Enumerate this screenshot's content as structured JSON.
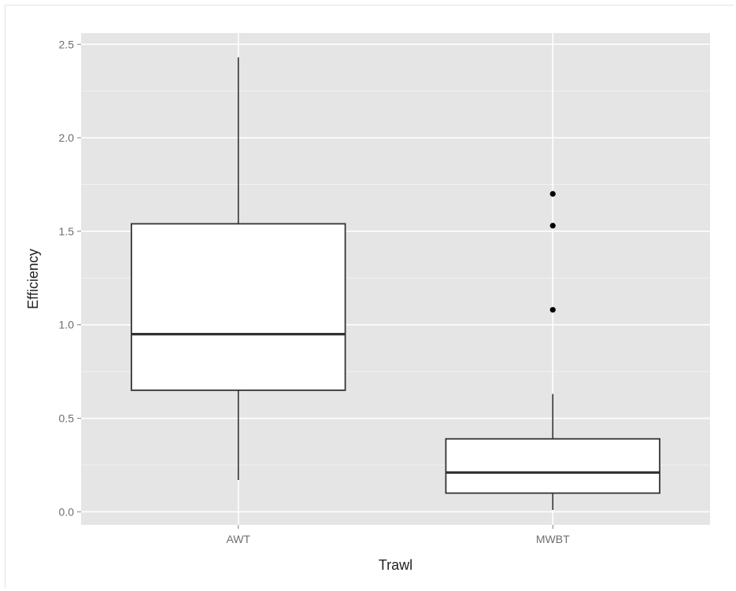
{
  "chart_data": {
    "type": "boxplot",
    "xlabel": "Trawl",
    "ylabel": "Efficiency",
    "categories": [
      "AWT",
      "MWBT"
    ],
    "ylim": [
      -0.07,
      2.56
    ],
    "y_ticks": [
      0.0,
      0.5,
      1.0,
      1.5,
      2.0,
      2.5
    ],
    "y_tick_labels": [
      "0.0",
      "0.5",
      "1.0",
      "1.5",
      "2.0",
      "2.5"
    ],
    "grid": true,
    "legend": "none",
    "boxes": [
      {
        "category": "AWT",
        "whisker_low": 0.17,
        "q1": 0.65,
        "median": 0.95,
        "q3": 1.54,
        "whisker_high": 2.43,
        "outliers": []
      },
      {
        "category": "MWBT",
        "whisker_low": 0.01,
        "q1": 0.1,
        "median": 0.21,
        "q3": 0.39,
        "whisker_high": 0.63,
        "outliers": [
          1.08,
          1.53,
          1.7
        ]
      }
    ],
    "colors": {
      "panel": "#e5e5e5",
      "grid_major": "#ffffff",
      "grid_minor": "#f2f2f2",
      "box_fill": "#ffffff",
      "box_line": "#333333"
    }
  }
}
